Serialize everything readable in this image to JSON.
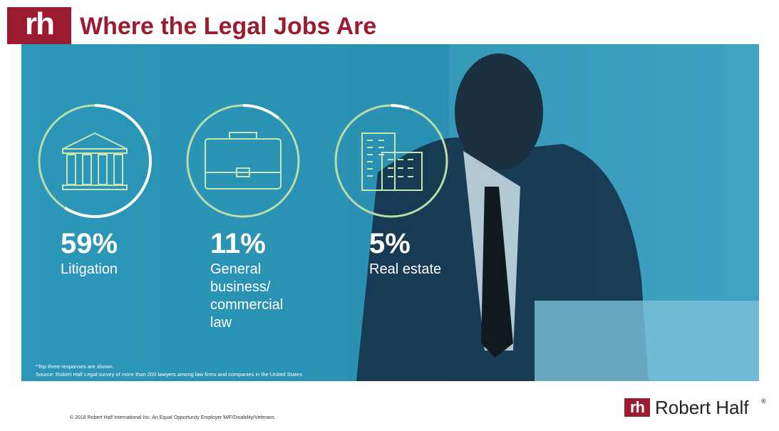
{
  "header": {
    "logo": "rh"
  },
  "chart_data": {
    "type": "ring",
    "title": "Where the Legal Jobs Are",
    "categories": [
      "Litigation",
      "General business/ commercial law",
      "Real estate"
    ],
    "values": [
      59,
      11,
      5
    ],
    "value_labels": [
      "59%",
      "11%",
      "5%"
    ],
    "ylim": [
      0,
      100
    ],
    "color": "#ffffff",
    "track_color": "#b9dca8",
    "note": "*Top three responses are shown.",
    "source": "Source: Robert Half Legal survey of more than 200 lawyers among law firms and companies in the United States"
  },
  "footer": {
    "copyright": "© 2018 Robert Half International Inc. An Equal Opportunity Employer M/F/Disability/Veterans.",
    "brand_logo": "rh",
    "brand": "Robert Half",
    "registered": "®"
  }
}
